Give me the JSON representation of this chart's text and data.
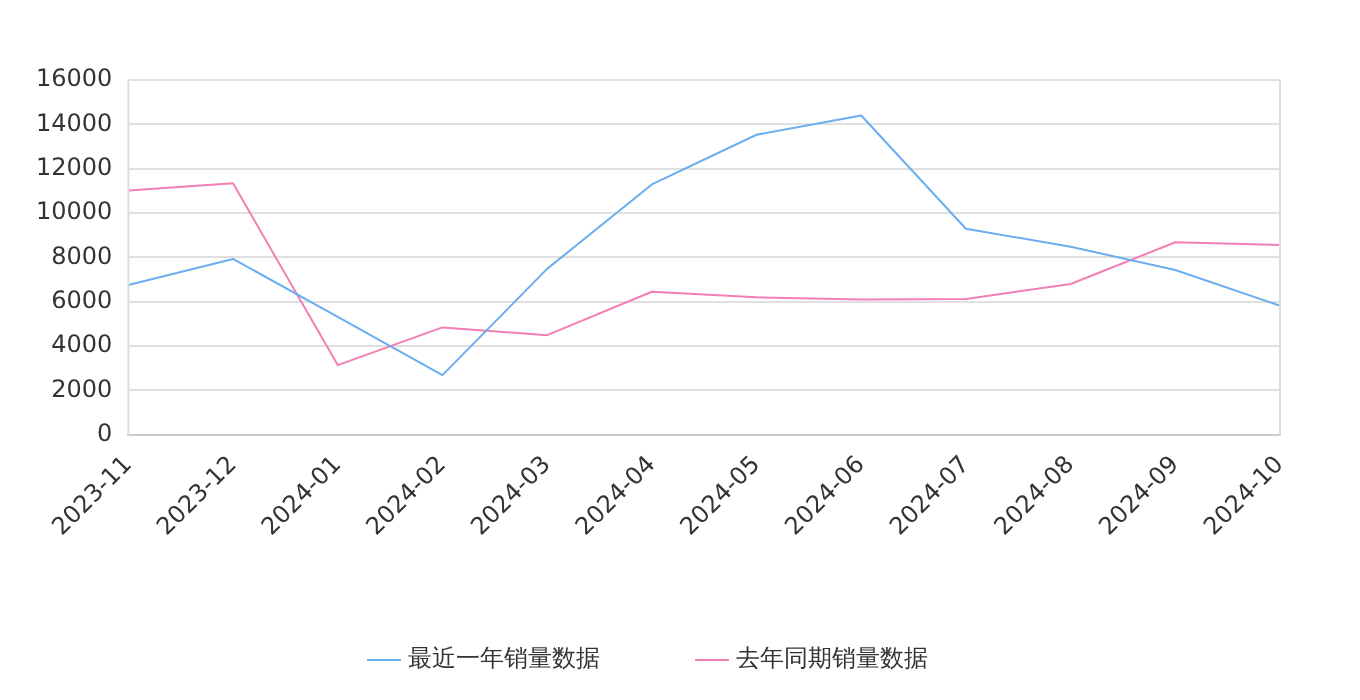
{
  "chart_data": {
    "type": "line",
    "categories": [
      "2023-11",
      "2023-12",
      "2024-01",
      "2024-02",
      "2024-03",
      "2024-04",
      "2024-05",
      "2024-06",
      "2024-07",
      "2024-08",
      "2024-09",
      "2024-10"
    ],
    "series": [
      {
        "name": "最近一年销量数据",
        "color": "#6aaef0",
        "values": [
          6750,
          7930,
          5320,
          2690,
          7480,
          11290,
          13530,
          14400,
          9290,
          8480,
          7430,
          5820
        ]
      },
      {
        "name": "去年同期销量数据",
        "color": "#f27fb5",
        "values": [
          11020,
          11340,
          3140,
          4840,
          4490,
          6450,
          6200,
          6100,
          6120,
          6800,
          8680,
          8560
        ]
      }
    ],
    "ylim": [
      0,
      16000
    ],
    "yticks": [
      0,
      2000,
      4000,
      6000,
      8000,
      10000,
      12000,
      14000,
      16000
    ],
    "grid": "y",
    "legend": "bottom",
    "marker": "none",
    "line_style": "solid"
  }
}
